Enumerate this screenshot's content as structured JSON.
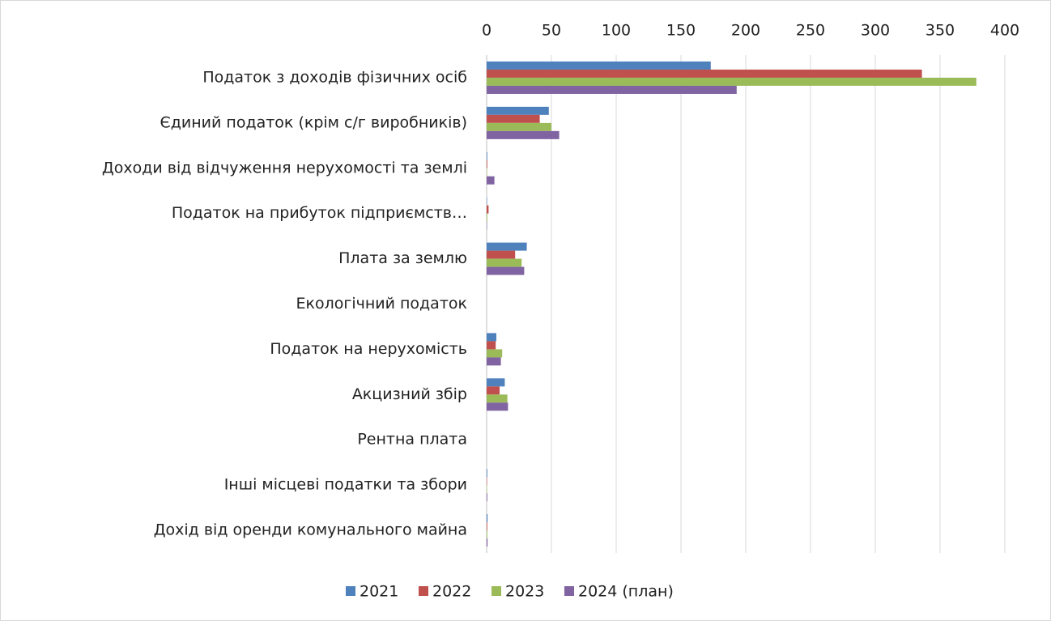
{
  "chart_data": {
    "type": "hbar",
    "categories": [
      "Податок з доходів фізичних осіб",
      "Єдиний податок (крім с/г виробників)",
      "Доходи від відчуження нерухомості та землі",
      "Податок на прибуток підприємств…",
      "Плата за землю",
      "Екологічний податок",
      "Податок на нерухомість",
      "Акцизний збір",
      "Рентна плата",
      "Інші місцеві податки та збори",
      "Дохід від оренди комунального майна"
    ],
    "series": [
      {
        "name": "2021",
        "color": "#4f81bd",
        "values": [
          173,
          48,
          0.5,
          0.3,
          31,
          0,
          7.5,
          14,
          0,
          0.5,
          0.7
        ]
      },
      {
        "name": "2022",
        "color": "#c0504d",
        "values": [
          336,
          41,
          0.5,
          1.5,
          22,
          0,
          7,
          10,
          0,
          0.3,
          0.5
        ]
      },
      {
        "name": "2023",
        "color": "#9bbb59",
        "values": [
          378,
          50,
          0.3,
          0.5,
          27,
          0,
          12,
          16,
          0,
          0.3,
          0.5
        ]
      },
      {
        "name": "2024 (план)",
        "color": "#8064a2",
        "values": [
          193,
          56,
          6,
          0.3,
          29,
          0,
          11,
          16.5,
          0,
          0.5,
          0.7
        ]
      }
    ],
    "xlim": [
      0,
      400
    ],
    "xticks": [
      0,
      50,
      100,
      150,
      200,
      250,
      300,
      350,
      400
    ],
    "grid": true,
    "legend": "bottom"
  }
}
